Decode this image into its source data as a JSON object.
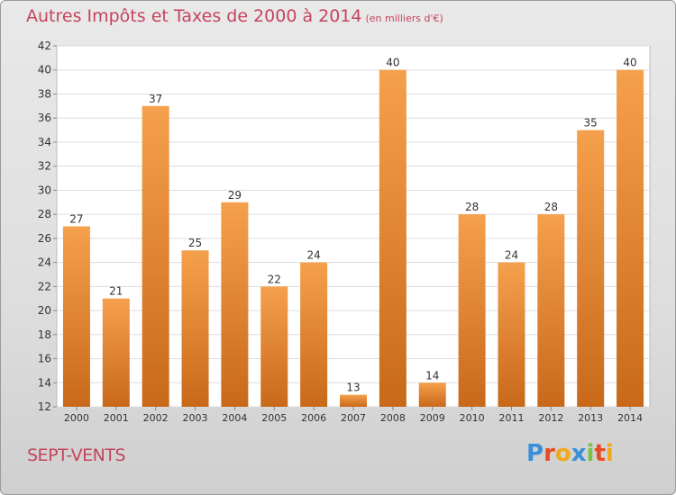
{
  "title": "Autres Impôts et Taxes de 2000 à 2014",
  "subtitle": "(en milliers d'€)",
  "commune": "SEPT-VENTS",
  "logo": {
    "letters": [
      "P",
      "r",
      "o",
      "x",
      "i",
      "t",
      "i"
    ],
    "colors": [
      "#3a8fd9",
      "#e84b1f",
      "#f2a81b",
      "#3a8fd9",
      "#7cc242",
      "#e84b1f",
      "#f2a81b"
    ]
  },
  "chart_data": {
    "type": "bar",
    "categories": [
      "2000",
      "2001",
      "2002",
      "2003",
      "2004",
      "2005",
      "2006",
      "2007",
      "2008",
      "2009",
      "2010",
      "2011",
      "2012",
      "2013",
      "2014"
    ],
    "values": [
      27,
      21,
      37,
      25,
      29,
      22,
      24,
      13,
      40,
      14,
      28,
      24,
      28,
      35,
      40
    ],
    "ylim": [
      12,
      42
    ],
    "yticks": [
      12,
      14,
      16,
      18,
      20,
      22,
      24,
      26,
      28,
      30,
      32,
      34,
      36,
      38,
      40,
      42
    ],
    "grid": true,
    "bar_color_top": "#f5a04c",
    "bar_color_bottom": "#c8691a"
  }
}
